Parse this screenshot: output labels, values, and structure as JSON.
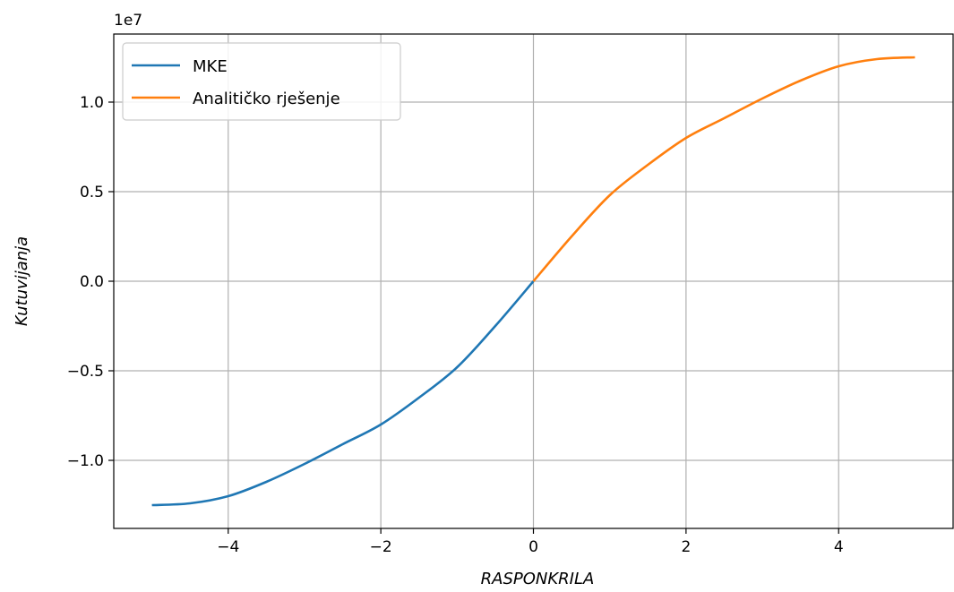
{
  "chart_data": {
    "type": "line",
    "xlabel": "RASPONKRILA",
    "ylabel": "Kutuvijanja",
    "y_offset_text": "1e7",
    "y_scale": 10000000,
    "xlim": [
      -5.5,
      5.5
    ],
    "ylim": [
      -13800000,
      13800000
    ],
    "x_ticks": [
      -4,
      -2,
      0,
      2,
      4
    ],
    "x_tick_labels": [
      "−4",
      "−2",
      "0",
      "2",
      "4"
    ],
    "y_ticks": [
      -10000000,
      -5000000,
      0,
      5000000,
      10000000
    ],
    "y_tick_labels": [
      "−1.0",
      "−0.5",
      "0.0",
      "0.5",
      "1.0"
    ],
    "grid": true,
    "legend_position": "upper-left",
    "series": [
      {
        "name": "MKE",
        "color": "#1f77b4",
        "x": [
          -5.0,
          -4.5,
          -4.0,
          -3.5,
          -3.0,
          -2.5,
          -2.0,
          -1.5,
          -1.0,
          -0.5,
          0.0
        ],
        "y": [
          -12500000,
          -12400000,
          -12000000,
          -11200000,
          -10200000,
          -9100000,
          -8000000,
          -6500000,
          -4800000,
          -2500000,
          0
        ]
      },
      {
        "name": "Analitičko rješenje",
        "color": "#ff7f0e",
        "x": [
          0.0,
          0.5,
          1.0,
          1.5,
          2.0,
          2.5,
          3.0,
          3.5,
          4.0,
          4.5,
          5.0
        ],
        "y": [
          0,
          2500000,
          4800000,
          6500000,
          8000000,
          9100000,
          10200000,
          11200000,
          12000000,
          12400000,
          12500000
        ]
      }
    ]
  }
}
